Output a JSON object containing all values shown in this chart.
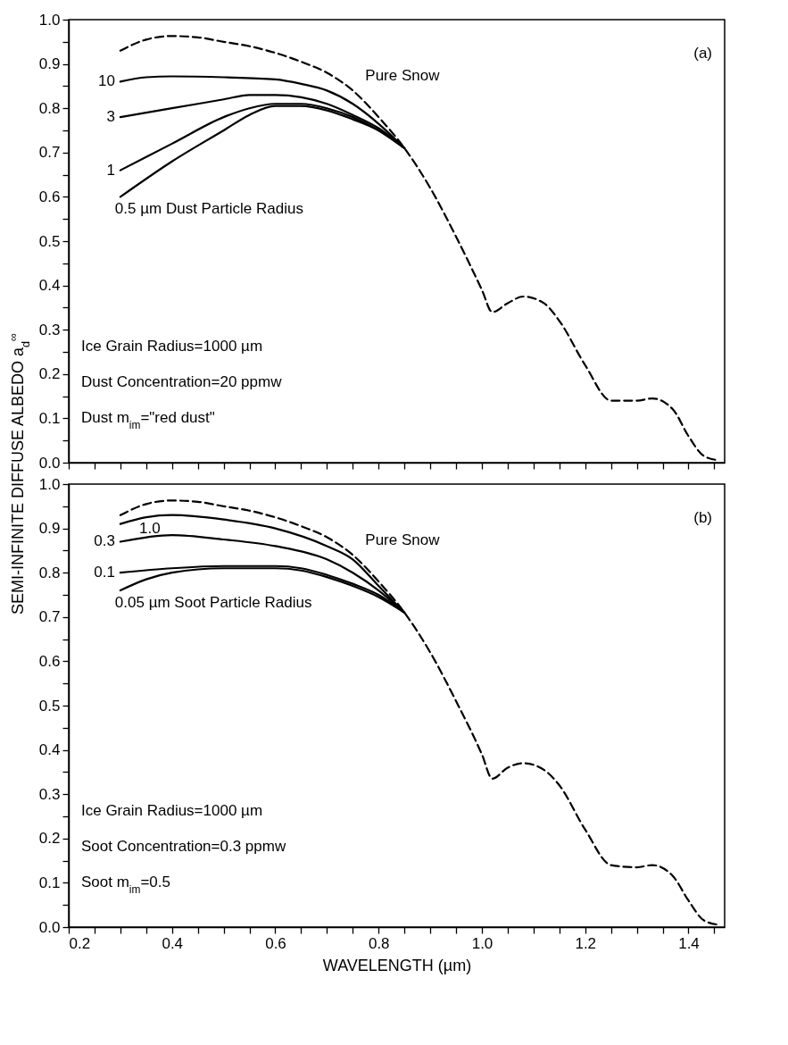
{
  "chart_data": [
    {
      "type": "line",
      "ylabel": "SEMI-INFINITE DIFFUSE ALBEDO a$_{d}$$^{∞}$",
      "xlim": [
        0.2,
        1.47
      ],
      "ylim": [
        0,
        1
      ],
      "xticks": [
        0.2,
        {
          "value": 0.25,
          "label": null
        },
        0.4,
        {
          "value": 0.3,
          "label": null
        },
        {
          "value": 0.35,
          "label": null
        },
        {
          "value": 0.45,
          "label": null
        },
        {
          "value": 0.5,
          "label": null
        },
        {
          "value": 0.55,
          "label": null
        },
        0.6,
        {
          "value": 0.65,
          "label": null
        },
        {
          "value": 0.7,
          "label": null
        },
        {
          "value": 0.75,
          "label": null
        },
        0.8,
        {
          "value": 0.85,
          "label": null
        },
        {
          "value": 0.9,
          "label": null
        },
        {
          "value": 0.95,
          "label": null
        },
        1,
        {
          "value": 1.05,
          "label": null
        },
        {
          "value": 1.1,
          "label": null
        },
        {
          "value": 1.15,
          "label": null
        },
        1.2,
        {
          "value": 1.25,
          "label": null
        },
        {
          "value": 1.3,
          "label": null
        },
        {
          "value": 1.35,
          "label": null
        },
        1.4,
        {
          "value": 1.45,
          "label": null
        }
      ],
      "yticks": [
        {
          "value": 0,
          "label": "0.0"
        },
        {
          "value": 0.05,
          "label": null
        },
        0.1,
        {
          "value": 0.15,
          "label": null
        },
        0.2,
        {
          "value": 0.25,
          "label": null
        },
        0.3,
        {
          "value": 0.35,
          "label": null
        },
        0.4,
        {
          "value": 0.45,
          "label": null
        },
        0.5,
        {
          "value": 0.55,
          "label": null
        },
        0.6,
        {
          "value": 0.65,
          "label": null
        },
        0.7,
        {
          "value": 0.75,
          "label": null
        },
        0.8,
        {
          "value": 0.85,
          "label": null
        },
        0.9,
        {
          "value": 0.95,
          "label": null
        },
        {
          "value": 1,
          "label": "1.0"
        }
      ],
      "tick_labels": "y",
      "grid": false,
      "legend": false,
      "series": [
        {
          "name": "Pure Snow",
          "color": "#000000",
          "line_style": "dashed",
          "x": [
            0.3,
            0.35,
            0.4,
            0.45,
            0.5,
            0.55,
            0.6,
            0.65,
            0.7,
            0.75,
            0.8,
            0.85,
            0.9,
            0.95,
            1.0,
            1.02,
            1.05,
            1.08,
            1.12,
            1.15,
            1.2,
            1.25,
            1.3,
            1.33,
            1.37,
            1.4,
            1.43,
            1.46
          ],
          "values": [
            0.93,
            0.955,
            0.963,
            0.96,
            0.95,
            0.94,
            0.925,
            0.905,
            0.88,
            0.84,
            0.78,
            0.71,
            0.62,
            0.51,
            0.39,
            0.34,
            0.36,
            0.375,
            0.36,
            0.32,
            0.22,
            0.14,
            0.14,
            0.145,
            0.12,
            0.06,
            0.015,
            0.005
          ]
        },
        {
          "name": "10",
          "color": "#000000",
          "line_style": "solid",
          "x": [
            0.3,
            0.35,
            0.4,
            0.5,
            0.6,
            0.65,
            0.7,
            0.75,
            0.8,
            0.85
          ],
          "values": [
            0.86,
            0.87,
            0.872,
            0.87,
            0.865,
            0.855,
            0.84,
            0.81,
            0.765,
            0.71
          ]
        },
        {
          "name": "3",
          "color": "#000000",
          "line_style": "solid",
          "x": [
            0.3,
            0.4,
            0.5,
            0.55,
            0.6,
            0.65,
            0.7,
            0.75,
            0.8,
            0.85
          ],
          "values": [
            0.78,
            0.8,
            0.82,
            0.83,
            0.83,
            0.825,
            0.81,
            0.785,
            0.755,
            0.71
          ]
        },
        {
          "name": "1",
          "color": "#000000",
          "line_style": "solid",
          "x": [
            0.3,
            0.4,
            0.5,
            0.55,
            0.6,
            0.65,
            0.7,
            0.75,
            0.8,
            0.85
          ],
          "values": [
            0.66,
            0.72,
            0.78,
            0.8,
            0.81,
            0.81,
            0.8,
            0.78,
            0.75,
            0.71
          ]
        },
        {
          "name": "0.5 µm Dust Particle Radius",
          "color": "#000000",
          "line_style": "solid",
          "x": [
            0.3,
            0.4,
            0.5,
            0.55,
            0.6,
            0.65,
            0.7,
            0.75,
            0.8,
            0.85
          ],
          "values": [
            0.6,
            0.68,
            0.75,
            0.785,
            0.805,
            0.805,
            0.795,
            0.775,
            0.75,
            0.71
          ]
        }
      ],
      "annotations": [
        "(a)",
        "Ice Grain Radius=1000 µm",
        "Dust Concentration=20 ppmw",
        "Dust m$_{im}$=\"red dust\""
      ]
    },
    {
      "type": "line",
      "xlabel": "WAVELENGTH (µm)",
      "xlim": [
        0.2,
        1.47
      ],
      "ylim": [
        0,
        1
      ],
      "xticks": [
        0.2,
        {
          "value": 0.25,
          "label": null
        },
        0.4,
        {
          "value": 0.3,
          "label": null
        },
        {
          "value": 0.35,
          "label": null
        },
        {
          "value": 0.45,
          "label": null
        },
        {
          "value": 0.5,
          "label": null
        },
        {
          "value": 0.55,
          "label": null
        },
        0.6,
        {
          "value": 0.65,
          "label": null
        },
        {
          "value": 0.7,
          "label": null
        },
        {
          "value": 0.75,
          "label": null
        },
        0.8,
        {
          "value": 0.85,
          "label": null
        },
        {
          "value": 0.9,
          "label": null
        },
        {
          "value": 0.95,
          "label": null
        },
        {
          "value": 1.0,
          "label": "1.0"
        },
        {
          "value": 1.05,
          "label": null
        },
        {
          "value": 1.1,
          "label": null
        },
        {
          "value": 1.15,
          "label": null
        },
        1.2,
        {
          "value": 1.25,
          "label": null
        },
        {
          "value": 1.3,
          "label": null
        },
        {
          "value": 1.35,
          "label": null
        },
        1.4,
        {
          "value": 1.45,
          "label": null
        }
      ],
      "yticks": [
        {
          "value": 0,
          "label": "0.0"
        },
        {
          "value": 0.05,
          "label": null
        },
        0.1,
        {
          "value": 0.15,
          "label": null
        },
        0.2,
        {
          "value": 0.25,
          "label": null
        },
        0.3,
        {
          "value": 0.35,
          "label": null
        },
        0.4,
        {
          "value": 0.45,
          "label": null
        },
        0.5,
        {
          "value": 0.55,
          "label": null
        },
        0.6,
        {
          "value": 0.65,
          "label": null
        },
        0.7,
        {
          "value": 0.75,
          "label": null
        },
        0.8,
        {
          "value": 0.85,
          "label": null
        },
        0.9,
        {
          "value": 0.95,
          "label": null
        },
        {
          "value": 1,
          "label": "1.0"
        }
      ],
      "grid": false,
      "legend": false,
      "series": [
        {
          "name": "Pure Snow",
          "color": "#000000",
          "line_style": "dashed",
          "x": [
            0.3,
            0.35,
            0.4,
            0.45,
            0.5,
            0.55,
            0.6,
            0.65,
            0.7,
            0.75,
            0.8,
            0.85,
            0.9,
            0.95,
            1.0,
            1.02,
            1.05,
            1.08,
            1.12,
            1.15,
            1.2,
            1.25,
            1.3,
            1.33,
            1.37,
            1.4,
            1.43,
            1.46
          ],
          "values": [
            0.93,
            0.955,
            0.963,
            0.96,
            0.95,
            0.94,
            0.925,
            0.905,
            0.88,
            0.84,
            0.78,
            0.71,
            0.62,
            0.51,
            0.39,
            0.335,
            0.36,
            0.37,
            0.355,
            0.32,
            0.22,
            0.14,
            0.135,
            0.14,
            0.115,
            0.06,
            0.015,
            0.005
          ]
        },
        {
          "name": "1.0",
          "color": "#000000",
          "line_style": "solid",
          "x": [
            0.3,
            0.35,
            0.4,
            0.5,
            0.6,
            0.7,
            0.75,
            0.8,
            0.85
          ],
          "values": [
            0.91,
            0.925,
            0.93,
            0.92,
            0.9,
            0.86,
            0.83,
            0.77,
            0.71
          ]
        },
        {
          "name": "0.3",
          "color": "#000000",
          "line_style": "solid",
          "x": [
            0.3,
            0.4,
            0.5,
            0.6,
            0.7,
            0.75,
            0.8,
            0.85
          ],
          "values": [
            0.87,
            0.885,
            0.875,
            0.86,
            0.83,
            0.8,
            0.76,
            0.71
          ]
        },
        {
          "name": "0.1",
          "color": "#000000",
          "line_style": "solid",
          "x": [
            0.3,
            0.4,
            0.5,
            0.6,
            0.65,
            0.7,
            0.75,
            0.8,
            0.85
          ],
          "values": [
            0.8,
            0.81,
            0.815,
            0.815,
            0.81,
            0.795,
            0.775,
            0.75,
            0.71
          ]
        },
        {
          "name": "0.05 µm Soot Particle Radius",
          "color": "#000000",
          "line_style": "solid",
          "x": [
            0.3,
            0.35,
            0.4,
            0.5,
            0.6,
            0.65,
            0.7,
            0.75,
            0.8,
            0.85
          ],
          "values": [
            0.76,
            0.785,
            0.8,
            0.81,
            0.81,
            0.805,
            0.79,
            0.77,
            0.745,
            0.71
          ]
        }
      ],
      "annotations": [
        "(b)",
        "Ice Grain Radius=1000 µm",
        "Soot Concentration=0.3 ppmw",
        "Soot m$_{im}$=0.5"
      ]
    }
  ]
}
